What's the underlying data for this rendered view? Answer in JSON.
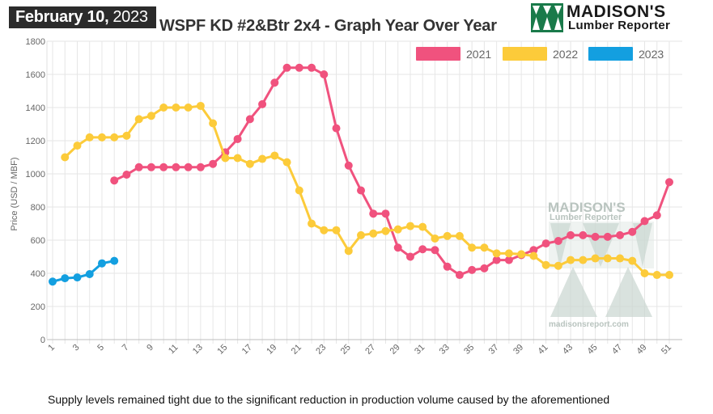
{
  "header": {
    "date_month_day": "February 10,",
    "date_year": "2023",
    "title": "WSPF KD #2&Btr 2x4 - Graph Year Over Year"
  },
  "logo": {
    "line1": "MADISON'S",
    "line2": "Lumber Reporter",
    "brand_color": "#1a7a4a"
  },
  "watermark": {
    "line1": "MADISON'S",
    "line2": "Lumber Reporter",
    "url": "madisonsreport.com"
  },
  "footer": {
    "text": "Supply levels remained tight due to the significant reduction in production volume caused by the aforementioned"
  },
  "chart_data": {
    "type": "line",
    "title": "WSPF KD #2&Btr 2x4 - Graph Year Over Year",
    "xlabel": "",
    "ylabel": "Price (USD / MBF)",
    "xlim": [
      1,
      51
    ],
    "ylim": [
      0,
      1800
    ],
    "yticks": [
      0,
      200,
      400,
      600,
      800,
      1000,
      1200,
      1400,
      1600,
      1800
    ],
    "xticks": [
      1,
      3,
      5,
      7,
      9,
      11,
      13,
      15,
      17,
      19,
      21,
      23,
      25,
      27,
      29,
      31,
      33,
      35,
      37,
      39,
      41,
      43,
      45,
      47,
      49,
      51
    ],
    "grid": true,
    "legend_position": "top-right",
    "series": [
      {
        "name": "2021",
        "color": "#f0527e",
        "x": [
          6,
          7,
          8,
          9,
          10,
          11,
          12,
          13,
          14,
          15,
          16,
          17,
          18,
          19,
          20,
          21,
          22,
          23,
          24,
          25,
          26,
          27,
          28,
          29,
          30,
          31,
          32,
          33,
          34,
          35,
          36,
          37,
          38,
          39,
          40,
          41,
          42,
          43,
          44,
          45,
          46,
          47,
          48,
          49,
          50,
          51
        ],
        "values": [
          960,
          995,
          1040,
          1040,
          1040,
          1040,
          1040,
          1040,
          1060,
          1130,
          1210,
          1330,
          1420,
          1550,
          1640,
          1640,
          1640,
          1600,
          1275,
          1050,
          900,
          760,
          760,
          555,
          500,
          545,
          540,
          440,
          390,
          420,
          430,
          480,
          480,
          510,
          540,
          580,
          595,
          630,
          630,
          620,
          620,
          630,
          650,
          715,
          750,
          950
        ]
      },
      {
        "name": "2022",
        "color": "#fccb3a",
        "x": [
          2,
          3,
          4,
          5,
          6,
          7,
          8,
          9,
          10,
          11,
          12,
          13,
          14,
          15,
          16,
          17,
          18,
          19,
          20,
          21,
          22,
          23,
          24,
          25,
          26,
          27,
          28,
          29,
          30,
          31,
          32,
          33,
          34,
          35,
          36,
          37,
          38,
          39,
          40,
          41,
          42,
          43,
          44,
          45,
          46,
          47,
          48,
          49,
          50,
          51
        ],
        "values": [
          1100,
          1170,
          1220,
          1220,
          1220,
          1230,
          1330,
          1350,
          1400,
          1400,
          1400,
          1410,
          1305,
          1095,
          1095,
          1060,
          1090,
          1110,
          1070,
          900,
          700,
          660,
          660,
          535,
          630,
          640,
          655,
          665,
          685,
          680,
          610,
          625,
          625,
          555,
          555,
          520,
          520,
          515,
          505,
          450,
          445,
          480,
          480,
          490,
          490,
          490,
          475,
          400,
          390,
          390
        ]
      },
      {
        "name": "2023",
        "color": "#139fe0",
        "x": [
          1,
          2,
          3,
          4,
          5,
          6
        ],
        "values": [
          350,
          370,
          375,
          395,
          460,
          475
        ]
      }
    ]
  }
}
